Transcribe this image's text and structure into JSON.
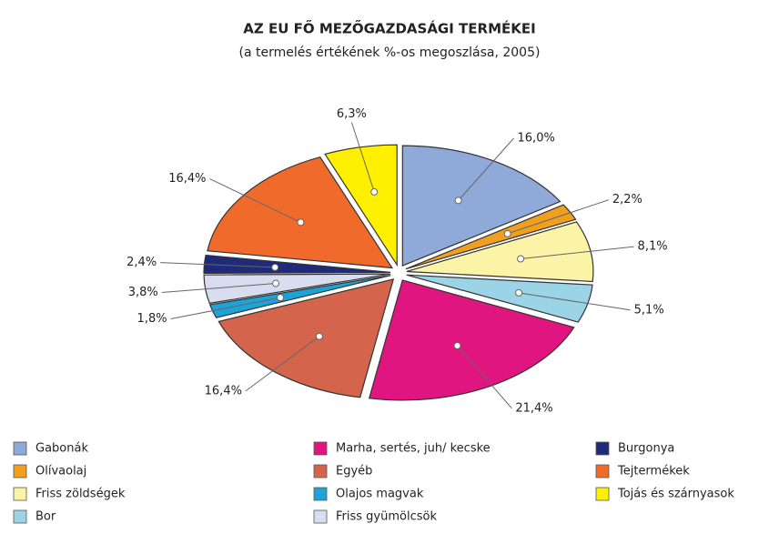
{
  "chart_data": {
    "type": "pie",
    "title": "AZ EU FŐ MEZŐGAZDASÁGI TERMÉKEI",
    "subtitle": "(a termelés értékének %-os megoszlása, 2005)",
    "categories": [
      "Gabonák",
      "Olívaolaj",
      "Friss zöldségek",
      "Bor",
      "Marha, sertés, juh/ kecske",
      "Egyéb",
      "Olajos magvak",
      "Friss gyümölcsök",
      "Burgonya",
      "Tejtermékek",
      "Tojás és szárnyasok"
    ],
    "values": [
      16.0,
      2.2,
      8.1,
      5.1,
      21.4,
      16.4,
      1.8,
      3.8,
      2.4,
      16.4,
      6.3
    ],
    "value_labels": [
      "16,0%",
      "2,2%",
      "8,1%",
      "5,1%",
      "21,4%",
      "16,4%",
      "1,8%",
      "3,8%",
      "2,4%",
      "16,4%",
      "6,3%"
    ],
    "colors": [
      "#8fa9d8",
      "#f0a01e",
      "#fbf3a6",
      "#9bd4e6",
      "#e0157f",
      "#d4644c",
      "#1ea3d8",
      "#d8def0",
      "#1f2b7a",
      "#f06a2c",
      "#fff000"
    ],
    "legend": "bottom"
  }
}
